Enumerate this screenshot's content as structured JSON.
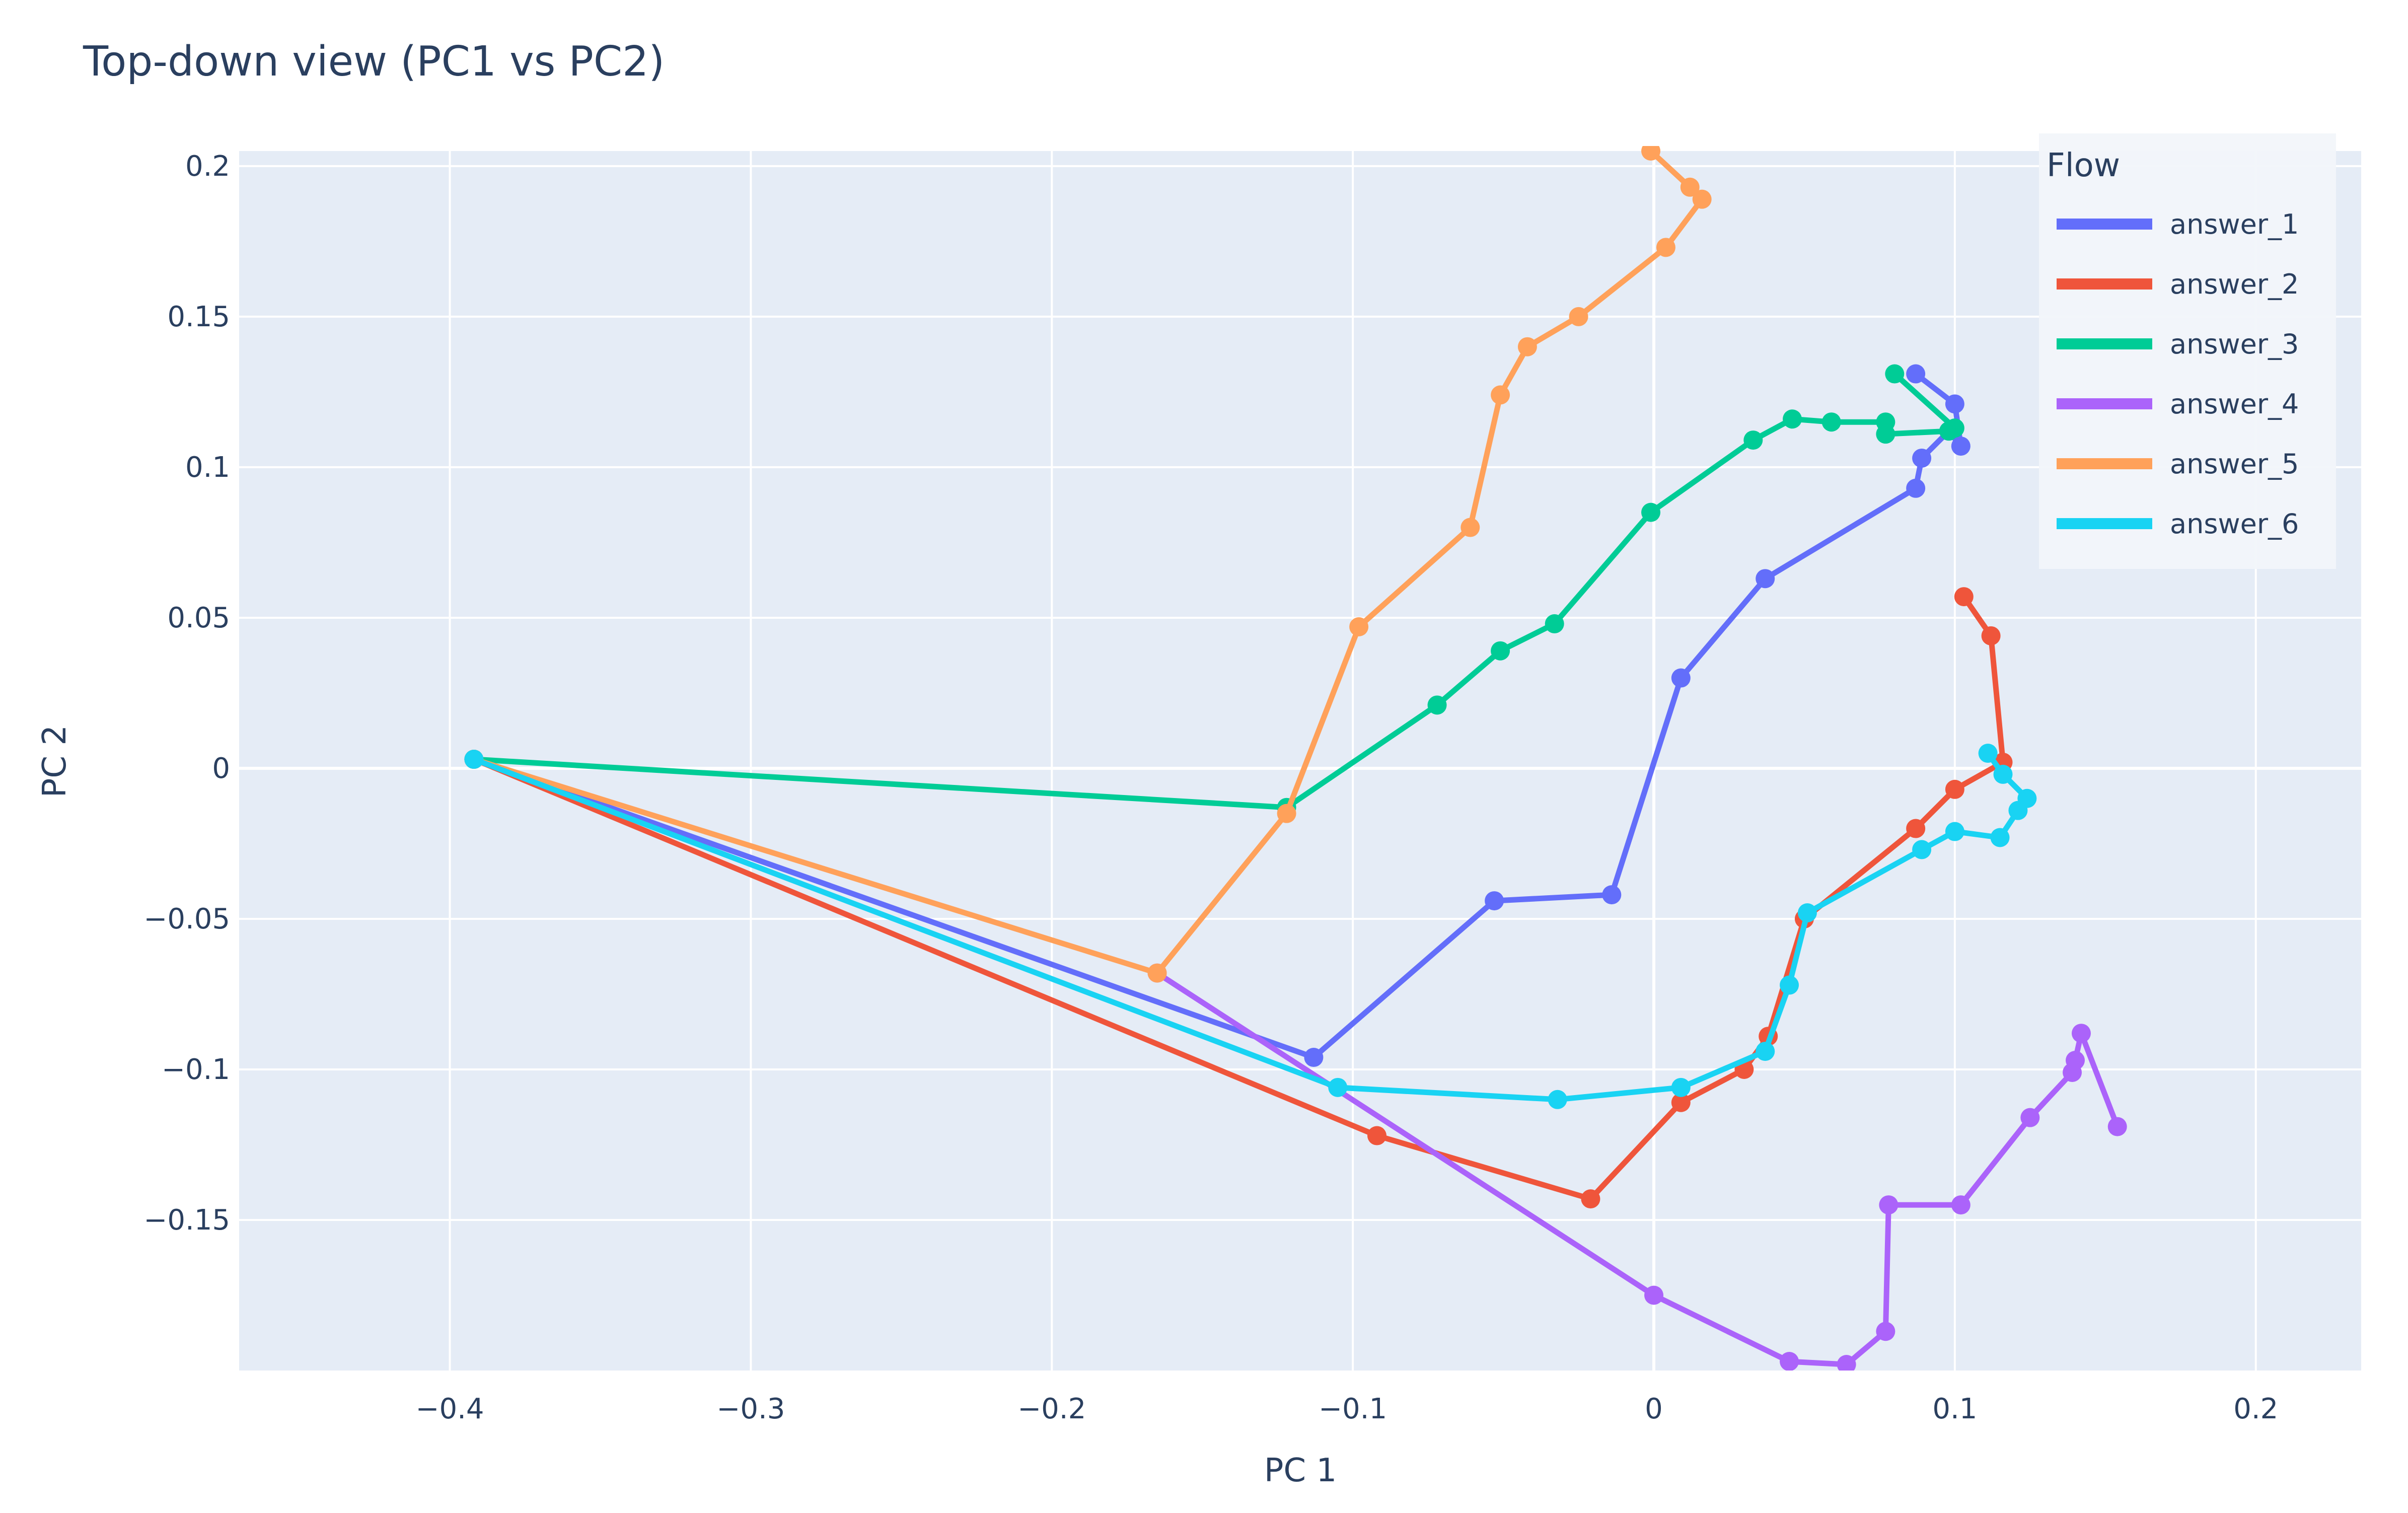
{
  "chart_data": {
    "type": "line",
    "title": "Top-down view (PC1 vs PC2)",
    "xlabel": "PC 1",
    "ylabel": "PC 2",
    "xlim": [
      -0.47,
      0.235
    ],
    "ylim": [
      -0.2,
      0.205
    ],
    "x_ticks": [
      -0.4,
      -0.3,
      -0.2,
      -0.1,
      0,
      0.1,
      0.2
    ],
    "x_tick_labels": [
      "−0.4",
      "−0.3",
      "−0.2",
      "−0.1",
      "0",
      "0.1",
      "0.2"
    ],
    "y_ticks": [
      0.2,
      0.15,
      0.1,
      0.05,
      0,
      -0.05,
      -0.1,
      -0.15
    ],
    "y_tick_labels": [
      "0.2",
      "0.15",
      "0.1",
      "0.05",
      "0",
      "−0.05",
      "−0.1",
      "−0.15"
    ],
    "grid": true,
    "legend_title": "Flow",
    "legend_position": "top-right",
    "series": [
      {
        "name": "answer_1",
        "color": "#636efa",
        "x": [
          -0.392,
          -0.113,
          -0.053,
          -0.014,
          0.009,
          0.037,
          0.087,
          0.089,
          0.098,
          0.102,
          0.1,
          0.087
        ],
        "y": [
          0.003,
          -0.096,
          -0.044,
          -0.042,
          0.03,
          0.063,
          0.093,
          0.103,
          0.112,
          0.107,
          0.121,
          0.131
        ]
      },
      {
        "name": "answer_2",
        "color": "#ef553b",
        "x": [
          -0.392,
          -0.092,
          -0.021,
          0.009,
          0.03,
          0.038,
          0.05,
          0.087,
          0.1,
          0.116,
          0.112,
          0.103
        ],
        "y": [
          0.003,
          -0.122,
          -0.143,
          -0.111,
          -0.1,
          -0.089,
          -0.05,
          -0.02,
          -0.007,
          0.002,
          0.044,
          0.057
        ]
      },
      {
        "name": "answer_3",
        "color": "#00cc96",
        "x": [
          -0.392,
          -0.122,
          -0.072,
          -0.051,
          -0.033,
          -0.001,
          0.033,
          0.046,
          0.059,
          0.077,
          0.077,
          0.098,
          0.1,
          0.08
        ],
        "y": [
          0.003,
          -0.013,
          0.021,
          0.039,
          0.048,
          0.085,
          0.109,
          0.116,
          0.115,
          0.115,
          0.111,
          0.112,
          0.113,
          0.131
        ]
      },
      {
        "name": "answer_4",
        "color": "#ab63fa",
        "x": [
          -0.165,
          0.0,
          0.045,
          0.064,
          0.077,
          0.078,
          0.102,
          0.125,
          0.139,
          0.14,
          0.142,
          0.154
        ],
        "y": [
          -0.068,
          -0.175,
          -0.197,
          -0.198,
          -0.187,
          -0.145,
          -0.145,
          -0.116,
          -0.101,
          -0.097,
          -0.088,
          -0.119
        ]
      },
      {
        "name": "answer_5",
        "color": "#ffa15a",
        "x": [
          -0.392,
          -0.165,
          -0.122,
          -0.098,
          -0.061,
          -0.051,
          -0.042,
          -0.025,
          0.004,
          0.016,
          0.012,
          -0.001
        ],
        "y": [
          0.003,
          -0.068,
          -0.015,
          0.047,
          0.08,
          0.124,
          0.14,
          0.15,
          0.173,
          0.189,
          0.193,
          0.205
        ]
      },
      {
        "name": "answer_6",
        "color": "#19d3f3",
        "x": [
          -0.392,
          -0.105,
          -0.032,
          0.009,
          0.037,
          0.045,
          0.051,
          0.089,
          0.1,
          0.115,
          0.121,
          0.124,
          0.116,
          0.111
        ],
        "y": [
          0.003,
          -0.106,
          -0.11,
          -0.106,
          -0.094,
          -0.072,
          -0.048,
          -0.027,
          -0.021,
          -0.023,
          -0.014,
          -0.01,
          -0.002,
          0.005
        ]
      }
    ]
  }
}
